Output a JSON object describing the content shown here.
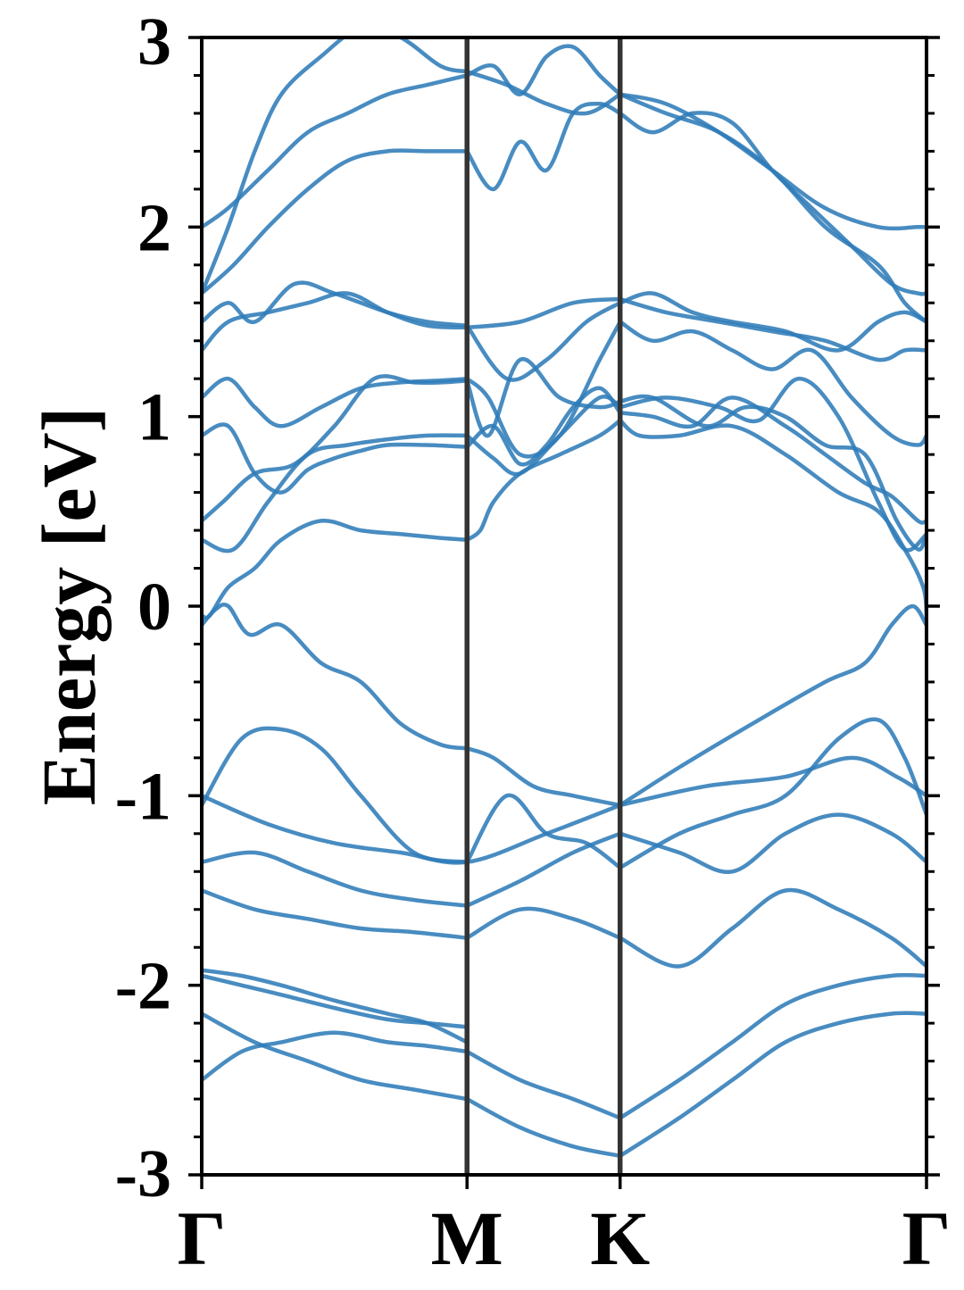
{
  "colors": {
    "band": "#2f7cb8",
    "divider": "#333333",
    "frame": "#000000",
    "background": "#ffffff"
  },
  "chart_data": {
    "type": "line",
    "title": "",
    "xlabel": "",
    "ylabel": "Energy [eV]",
    "ylim": [
      -3,
      3
    ],
    "xlim": [
      0,
      2.732
    ],
    "grid": false,
    "legend": "none",
    "yticks": [
      {
        "value": 3,
        "label": "3"
      },
      {
        "value": 2,
        "label": "2"
      },
      {
        "value": 1,
        "label": "1"
      },
      {
        "value": 0,
        "label": "0"
      },
      {
        "value": -1,
        "label": "-1"
      },
      {
        "value": -2,
        "label": "-2"
      },
      {
        "value": -3,
        "label": "-3"
      }
    ],
    "ytick_minor_step": 0.2,
    "kpath": [
      {
        "label": "Γ",
        "x": 0
      },
      {
        "label": "M",
        "x": 1.0
      },
      {
        "label": "K",
        "x": 1.577
      },
      {
        "label": "Γ",
        "x": 2.732
      }
    ],
    "series": [
      {
        "x": [
          0,
          0.15,
          0.3,
          0.5,
          0.7,
          0.85,
          1.0
        ],
        "values": [
          -1.95,
          -2.0,
          -2.05,
          -2.12,
          -2.18,
          -2.2,
          -2.22
        ]
      },
      {
        "x": [
          0,
          0.15,
          0.3,
          0.5,
          0.7,
          0.85,
          1.0
        ],
        "values": [
          -1.92,
          -1.95,
          -2.0,
          -2.08,
          -2.15,
          -2.2,
          -2.3
        ]
      },
      {
        "x": [
          0,
          0.05,
          0.1,
          0.18,
          0.3,
          0.45,
          0.6,
          0.75,
          0.9,
          1.0
        ],
        "values": [
          -0.1,
          -0.02,
          0.0,
          -0.15,
          -0.1,
          -0.3,
          -0.4,
          -0.62,
          -0.73,
          -0.75
        ]
      },
      {
        "x": [
          1.0,
          1.1,
          1.25,
          1.4,
          1.577
        ],
        "values": [
          -0.75,
          -0.8,
          -0.95,
          -1.0,
          -1.05
        ]
      },
      {
        "x": [
          1.577,
          1.8,
          2.1,
          2.35,
          2.5,
          2.6,
          2.68,
          2.732
        ],
        "values": [
          -1.05,
          -0.85,
          -0.6,
          -0.4,
          -0.3,
          -0.1,
          0.0,
          -0.1
        ]
      },
      {
        "x": [
          0,
          0.03,
          0.1,
          0.2,
          0.3,
          0.45,
          0.6,
          0.75,
          0.9,
          1.0
        ],
        "values": [
          -0.05,
          -0.05,
          0.1,
          0.2,
          0.35,
          0.45,
          0.4,
          0.38,
          0.36,
          0.35
        ]
      },
      {
        "x": [
          1.0,
          1.05,
          1.1,
          1.2,
          1.35,
          1.5,
          1.577
        ],
        "values": [
          0.35,
          0.4,
          0.55,
          0.7,
          0.8,
          0.9,
          0.98
        ]
      },
      {
        "x": [
          1.577,
          1.65,
          1.8,
          2.0,
          2.2,
          2.4,
          2.55,
          2.65,
          2.72,
          2.732
        ],
        "values": [
          0.98,
          0.9,
          0.9,
          0.95,
          0.8,
          0.6,
          0.5,
          0.3,
          0.1,
          -0.05
        ]
      },
      {
        "x": [
          0,
          0.08,
          0.2,
          0.35,
          0.5,
          0.65,
          0.8,
          0.9,
          1.0
        ],
        "values": [
          0.45,
          0.55,
          0.7,
          0.75,
          0.95,
          1.2,
          1.18,
          1.18,
          1.19
        ]
      },
      {
        "x": [
          1.0,
          1.08,
          1.2,
          1.35,
          1.5,
          1.577
        ],
        "values": [
          1.19,
          0.9,
          1.3,
          1.1,
          1.05,
          1.08
        ]
      },
      {
        "x": [
          1.577,
          1.7,
          1.9,
          2.05,
          2.2,
          2.35,
          2.5,
          2.62,
          2.7,
          2.732
        ],
        "values": [
          1.08,
          1.1,
          0.95,
          1.05,
          1.0,
          0.85,
          0.8,
          0.45,
          0.3,
          0.38
        ]
      },
      {
        "x": [
          0,
          0.1,
          0.2,
          0.3,
          0.4,
          0.5,
          0.6,
          0.7,
          0.85,
          1.0
        ],
        "values": [
          0.9,
          0.95,
          0.7,
          0.6,
          0.72,
          0.78,
          0.82,
          0.85,
          0.85,
          0.84
        ]
      },
      {
        "x": [
          1.0,
          1.1,
          1.2,
          1.3,
          1.4,
          1.5,
          1.577
        ],
        "values": [
          0.84,
          0.95,
          0.75,
          0.85,
          1.05,
          1.15,
          1.02
        ]
      },
      {
        "x": [
          1.577,
          1.7,
          1.85,
          2.0,
          2.2,
          2.35,
          2.5,
          2.6,
          2.7,
          2.732
        ],
        "values": [
          1.02,
          1.0,
          0.95,
          1.1,
          0.95,
          0.8,
          0.65,
          0.58,
          0.45,
          0.45
        ]
      },
      {
        "x": [
          0,
          0.12,
          0.25,
          0.4,
          0.55,
          0.7,
          0.85,
          1.0
        ],
        "values": [
          0.35,
          0.3,
          0.55,
          0.8,
          0.85,
          0.88,
          0.9,
          0.9
        ]
      },
      {
        "x": [
          1.0,
          1.1,
          1.2,
          1.35,
          1.5,
          1.577
        ],
        "values": [
          0.9,
          0.78,
          0.7,
          0.9,
          1.1,
          1.05
        ]
      },
      {
        "x": [
          1.577,
          1.75,
          1.95,
          2.1,
          2.25,
          2.4,
          2.55,
          2.65,
          2.732
        ],
        "values": [
          1.05,
          1.1,
          1.05,
          0.98,
          1.2,
          1.0,
          0.55,
          0.3,
          0.38
        ]
      },
      {
        "x": [
          0,
          0.1,
          0.2,
          0.3,
          0.45,
          0.6,
          0.75,
          0.9,
          1.0
        ],
        "values": [
          1.1,
          1.2,
          1.05,
          0.95,
          1.05,
          1.15,
          1.18,
          1.19,
          1.2
        ]
      },
      {
        "x": [
          1.0,
          1.08,
          1.2,
          1.35,
          1.5,
          1.577
        ],
        "values": [
          1.2,
          1.1,
          0.8,
          0.9,
          1.3,
          1.5
        ]
      },
      {
        "x": [
          1.577,
          1.7,
          1.85,
          2.0,
          2.15,
          2.3,
          2.45,
          2.6,
          2.7,
          2.732
        ],
        "values": [
          1.5,
          1.4,
          1.45,
          1.35,
          1.25,
          1.35,
          1.1,
          0.9,
          0.85,
          0.9
        ]
      },
      {
        "x": [
          0,
          0.1,
          0.25,
          0.4,
          0.55,
          0.7,
          0.85,
          1.0
        ],
        "values": [
          1.35,
          1.5,
          1.55,
          1.6,
          1.65,
          1.55,
          1.48,
          1.47
        ]
      },
      {
        "x": [
          1.0,
          1.2,
          1.4,
          1.577
        ],
        "values": [
          1.47,
          1.5,
          1.6,
          1.62
        ]
      },
      {
        "x": [
          1.577,
          1.75,
          1.95,
          2.15,
          2.35,
          2.55,
          2.65,
          2.732
        ],
        "values": [
          1.62,
          1.55,
          1.5,
          1.45,
          1.4,
          1.3,
          1.35,
          1.35
        ]
      },
      {
        "x": [
          0,
          0.1,
          0.2,
          0.35,
          0.5,
          0.7,
          0.85,
          1.0
        ],
        "values": [
          1.5,
          1.6,
          1.5,
          1.7,
          1.65,
          1.55,
          1.5,
          1.48
        ]
      },
      {
        "x": [
          1.0,
          1.15,
          1.3,
          1.45,
          1.577
        ],
        "values": [
          1.48,
          1.2,
          1.3,
          1.5,
          1.6
        ]
      },
      {
        "x": [
          1.577,
          1.7,
          1.85,
          2.0,
          2.2,
          2.4,
          2.55,
          2.65,
          2.732
        ],
        "values": [
          1.6,
          1.65,
          1.55,
          1.5,
          1.45,
          1.35,
          1.5,
          1.55,
          1.5
        ]
      },
      {
        "x": [
          0,
          0.12,
          0.25,
          0.4,
          0.55,
          0.7,
          0.85,
          1.0
        ],
        "values": [
          1.65,
          1.8,
          2.0,
          2.2,
          2.35,
          2.4,
          2.4,
          2.4
        ]
      },
      {
        "x": [
          1.0,
          1.1,
          1.2,
          1.3,
          1.4,
          1.5,
          1.577
        ],
        "values": [
          2.4,
          2.2,
          2.45,
          2.3,
          2.6,
          2.65,
          2.6
        ]
      },
      {
        "x": [
          1.577,
          1.7,
          1.85,
          2.0,
          2.15,
          2.3,
          2.45,
          2.6,
          2.7,
          2.732
        ],
        "values": [
          2.6,
          2.5,
          2.6,
          2.55,
          2.3,
          2.1,
          1.9,
          1.7,
          1.65,
          1.65
        ]
      },
      {
        "x": [
          0,
          0.1,
          0.25,
          0.4,
          0.55,
          0.7,
          0.85,
          1.0
        ],
        "values": [
          2.0,
          2.1,
          2.3,
          2.5,
          2.6,
          2.7,
          2.75,
          2.8
        ]
      },
      {
        "x": [
          1.0,
          1.1,
          1.2,
          1.3,
          1.4,
          1.5,
          1.577
        ],
        "values": [
          2.8,
          2.85,
          2.7,
          2.9,
          2.95,
          2.8,
          2.7
        ]
      },
      {
        "x": [
          1.577,
          1.75,
          1.95,
          2.15,
          2.35,
          2.55,
          2.7,
          2.732
        ],
        "values": [
          2.7,
          2.65,
          2.5,
          2.3,
          2.1,
          2.0,
          2.0,
          2.0
        ]
      },
      {
        "x": [
          0,
          0.1,
          0.2,
          0.3,
          0.45,
          0.6,
          0.75,
          0.9,
          1.0
        ],
        "values": [
          1.65,
          2.0,
          2.4,
          2.7,
          2.9,
          3.05,
          3.0,
          2.85,
          2.82
        ]
      },
      {
        "x": [
          1.0,
          1.15,
          1.3,
          1.45,
          1.577
        ],
        "values": [
          2.82,
          2.75,
          2.65,
          2.6,
          2.7
        ]
      },
      {
        "x": [
          1.577,
          1.75,
          1.95,
          2.15,
          2.35,
          2.55,
          2.65,
          2.732
        ],
        "values": [
          2.7,
          2.6,
          2.5,
          2.3,
          2.0,
          1.8,
          1.6,
          1.5
        ]
      },
      {
        "x": [
          0,
          0.25,
          0.5,
          0.75,
          1.0,
          1.3,
          1.577
        ],
        "values": [
          -1.0,
          -1.15,
          -1.25,
          -1.3,
          -1.35,
          -1.2,
          -1.05
        ]
      },
      {
        "x": [
          1.577,
          1.9,
          2.2,
          2.45,
          2.62,
          2.732
        ],
        "values": [
          -1.05,
          -0.95,
          -0.9,
          -0.8,
          -0.9,
          -1.0
        ]
      },
      {
        "x": [
          0,
          0.15,
          0.3,
          0.45,
          0.6,
          0.8,
          1.0
        ],
        "values": [
          -1.05,
          -0.7,
          -0.65,
          -0.75,
          -1.0,
          -1.3,
          -1.35
        ]
      },
      {
        "x": [
          1.0,
          1.15,
          1.3,
          1.45,
          1.577
        ],
        "values": [
          -1.35,
          -1.0,
          -1.2,
          -1.25,
          -1.38
        ]
      },
      {
        "x": [
          1.577,
          1.8,
          2.0,
          2.2,
          2.4,
          2.55,
          2.65,
          2.732
        ],
        "values": [
          -1.38,
          -1.2,
          -1.1,
          -1.0,
          -0.7,
          -0.6,
          -0.8,
          -1.1
        ]
      },
      {
        "x": [
          0,
          0.2,
          0.4,
          0.6,
          0.8,
          1.0
        ],
        "values": [
          -1.35,
          -1.3,
          -1.4,
          -1.5,
          -1.55,
          -1.58
        ]
      },
      {
        "x": [
          1.0,
          1.2,
          1.4,
          1.577
        ],
        "values": [
          -1.58,
          -1.45,
          -1.3,
          -1.2
        ]
      },
      {
        "x": [
          1.577,
          1.8,
          2.0,
          2.2,
          2.4,
          2.6,
          2.732
        ],
        "values": [
          -1.2,
          -1.3,
          -1.4,
          -1.2,
          -1.1,
          -1.2,
          -1.35
        ]
      },
      {
        "x": [
          0,
          0.2,
          0.4,
          0.6,
          0.8,
          1.0
        ],
        "values": [
          -1.5,
          -1.6,
          -1.65,
          -1.7,
          -1.72,
          -1.75
        ]
      },
      {
        "x": [
          1.0,
          1.2,
          1.4,
          1.577
        ],
        "values": [
          -1.75,
          -1.6,
          -1.65,
          -1.75
        ]
      },
      {
        "x": [
          1.577,
          1.8,
          2.0,
          2.2,
          2.4,
          2.6,
          2.732
        ],
        "values": [
          -1.75,
          -1.9,
          -1.7,
          -1.5,
          -1.6,
          -1.75,
          -1.9
        ]
      },
      {
        "x": [
          0,
          0.15,
          0.3,
          0.5,
          0.7,
          0.85,
          1.0
        ],
        "values": [
          -2.5,
          -2.35,
          -2.3,
          -2.25,
          -2.3,
          -2.32,
          -2.35
        ]
      },
      {
        "x": [
          1.0,
          1.2,
          1.4,
          1.577
        ],
        "values": [
          -2.35,
          -2.5,
          -2.6,
          -2.7
        ]
      },
      {
        "x": [
          1.577,
          1.8,
          2.0,
          2.2,
          2.4,
          2.6,
          2.732
        ],
        "values": [
          -2.7,
          -2.5,
          -2.3,
          -2.1,
          -2.0,
          -1.95,
          -1.95
        ]
      },
      {
        "x": [
          0,
          0.2,
          0.4,
          0.6,
          0.8,
          1.0
        ],
        "values": [
          -2.15,
          -2.3,
          -2.4,
          -2.5,
          -2.55,
          -2.6
        ]
      },
      {
        "x": [
          1.0,
          1.2,
          1.4,
          1.577
        ],
        "values": [
          -2.6,
          -2.75,
          -2.85,
          -2.9
        ]
      },
      {
        "x": [
          1.577,
          1.8,
          2.0,
          2.2,
          2.4,
          2.6,
          2.732
        ],
        "values": [
          -2.9,
          -2.7,
          -2.5,
          -2.3,
          -2.2,
          -2.15,
          -2.15
        ]
      }
    ]
  }
}
